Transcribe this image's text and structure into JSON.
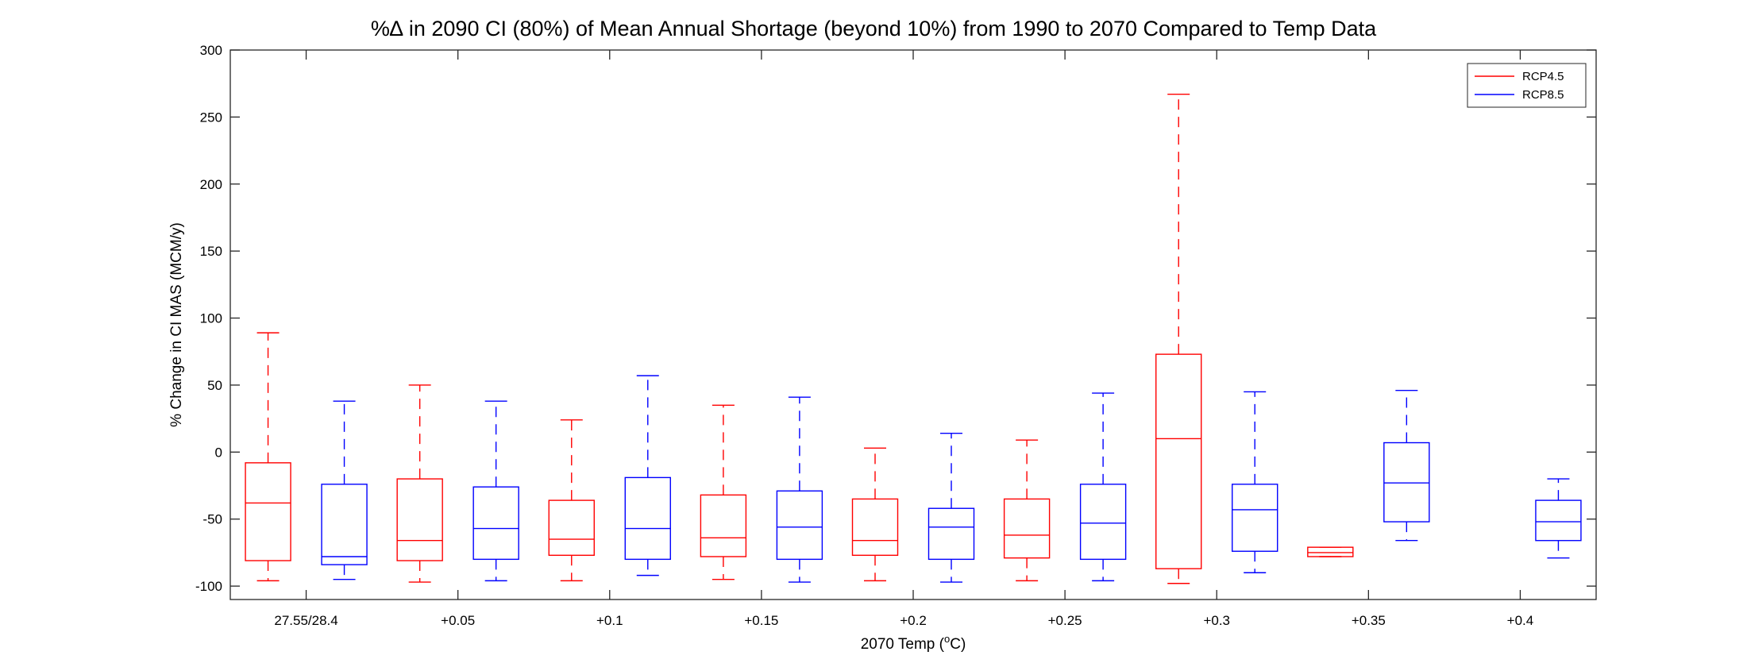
{
  "chart_data": {
    "type": "boxplot",
    "title": "%∆ in 2090 CI (80%) of Mean Annual Shortage (beyond 10%) from 1990 to 2070 Compared to Temp Data",
    "xlabel_main": "2070 Temp (",
    "xlabel_sup": "o",
    "xlabel_end": "C)",
    "ylabel": "% Change in CI MAS (MCM/y)",
    "ylim": [
      -110,
      300
    ],
    "yticks": [
      300,
      250,
      200,
      150,
      100,
      50,
      0,
      -50,
      -100
    ],
    "categories": [
      "27.55/28.4",
      "+0.05",
      "+0.1",
      "+0.15",
      "+0.2",
      "+0.25",
      "+0.3",
      "+0.35",
      "+0.4"
    ],
    "legend_position": "top-right",
    "grid": false,
    "series": [
      {
        "name": "RCP4.5",
        "color": "#ff0000",
        "boxes": [
          {
            "min": -96,
            "q1": -81,
            "median": -38,
            "q3": -8,
            "max": 89
          },
          {
            "min": -97,
            "q1": -81,
            "median": -66,
            "q3": -20,
            "max": 50
          },
          {
            "min": -96,
            "q1": -77,
            "median": -65,
            "q3": -36,
            "max": 24
          },
          {
            "min": -95,
            "q1": -78,
            "median": -64,
            "q3": -32,
            "max": 35
          },
          {
            "min": -96,
            "q1": -77,
            "median": -66,
            "q3": -35,
            "max": 3
          },
          {
            "min": -96,
            "q1": -79,
            "median": -62,
            "q3": -35,
            "max": 9
          },
          {
            "min": -98,
            "q1": -87,
            "median": 10,
            "q3": 73,
            "max": 267
          },
          {
            "min": -78,
            "q1": -78,
            "median": -75,
            "q3": -71,
            "max": -71
          },
          null
        ]
      },
      {
        "name": "RCP8.5",
        "color": "#0000ff",
        "boxes": [
          {
            "min": -95,
            "q1": -84,
            "median": -78,
            "q3": -24,
            "max": 38
          },
          {
            "min": -96,
            "q1": -80,
            "median": -57,
            "q3": -26,
            "max": 38
          },
          {
            "min": -92,
            "q1": -80,
            "median": -57,
            "q3": -19,
            "max": 57
          },
          {
            "min": -97,
            "q1": -80,
            "median": -56,
            "q3": -29,
            "max": 41
          },
          {
            "min": -97,
            "q1": -80,
            "median": -56,
            "q3": -42,
            "max": 14
          },
          {
            "min": -96,
            "q1": -80,
            "median": -53,
            "q3": -24,
            "max": 44
          },
          {
            "min": -90,
            "q1": -74,
            "median": -43,
            "q3": -24,
            "max": 45
          },
          {
            "min": -66,
            "q1": -52,
            "median": -23,
            "q3": 7,
            "max": 46
          },
          {
            "min": -79,
            "q1": -66,
            "median": -52,
            "q3": -36,
            "max": -20
          }
        ]
      }
    ]
  }
}
